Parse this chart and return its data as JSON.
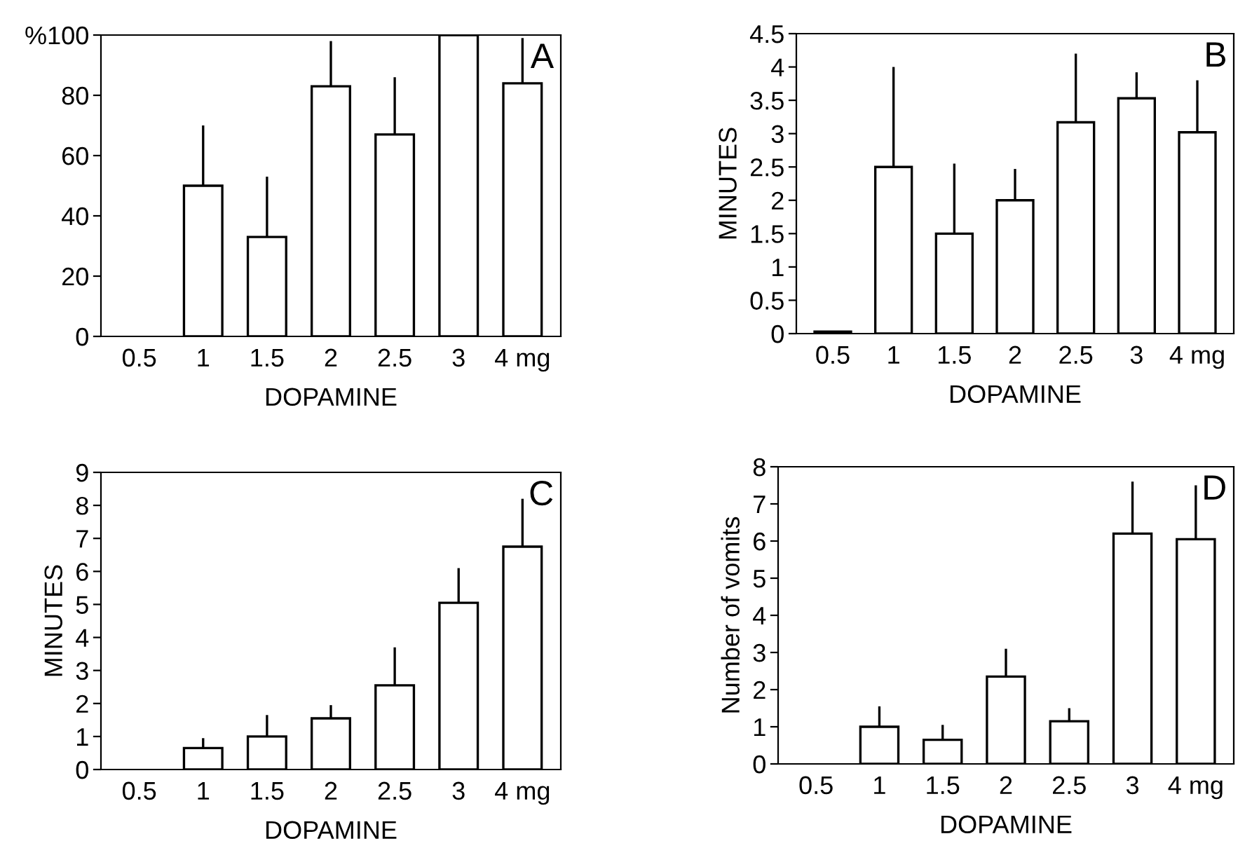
{
  "chart_data": [
    {
      "type": "bar",
      "categories": [
        "0.5",
        "1",
        "1.5",
        "2",
        "2.5",
        "3",
        "4 mg"
      ],
      "xlabel": "DOPAMINE",
      "annotations": [
        "A"
      ],
      "color": "#ffffff",
      "values": [
        0,
        50,
        33,
        83,
        67,
        100,
        84
      ],
      "errors": [
        null,
        [
          50,
          70
        ],
        [
          33,
          53
        ],
        [
          83,
          98
        ],
        [
          67,
          86
        ],
        null,
        [
          84,
          99
        ]
      ],
      "ylim": [
        0,
        100
      ],
      "yticks": [
        0,
        20,
        40,
        60,
        80,
        {
          "value": 100,
          "label": "%100"
        }
      ]
    },
    {
      "type": "bar",
      "categories": [
        "0.5",
        "1",
        "1.5",
        "2",
        "2.5",
        "3",
        "4 mg"
      ],
      "xlabel": "DOPAMINE",
      "ylabel": "MINUTES",
      "annotations": [
        "B"
      ],
      "color": "#ffffff",
      "values": [
        0.03,
        2.5,
        1.5,
        2.0,
        3.17,
        3.53,
        3.02
      ],
      "errors": [
        null,
        [
          2.5,
          4.0
        ],
        [
          1.5,
          2.55
        ],
        [
          2.0,
          2.47
        ],
        [
          3.17,
          4.2
        ],
        [
          3.53,
          3.92
        ],
        [
          3.02,
          3.8
        ]
      ],
      "ylim": [
        0,
        4.5
      ],
      "yticks": [
        0,
        0.5,
        1,
        1.5,
        2,
        2.5,
        3,
        3.5,
        4,
        4.5
      ]
    },
    {
      "type": "bar",
      "categories": [
        "0.5",
        "1",
        "1.5",
        "2",
        "2.5",
        "3",
        "4 mg"
      ],
      "xlabel": "DOPAMINE",
      "ylabel": "MINUTES",
      "annotations": [
        "C"
      ],
      "color": "#ffffff",
      "values": [
        0,
        0.65,
        1.0,
        1.55,
        2.55,
        5.05,
        6.75
      ],
      "errors": [
        null,
        [
          0.65,
          0.95
        ],
        [
          1.0,
          1.65
        ],
        [
          1.55,
          1.95
        ],
        [
          2.55,
          3.7
        ],
        [
          5.05,
          6.1
        ],
        [
          6.75,
          8.2
        ]
      ],
      "ylim": [
        0,
        9
      ],
      "yticks": [
        0,
        1,
        2,
        3,
        4,
        5,
        6,
        7,
        8,
        9
      ]
    },
    {
      "type": "bar",
      "categories": [
        "0.5",
        "1",
        "1.5",
        "2",
        "2.5",
        "3",
        "4 mg"
      ],
      "xlabel": "DOPAMINE",
      "ylabel": "Number of vomits",
      "annotations": [
        "D"
      ],
      "color": "#ffffff",
      "values": [
        0,
        1.0,
        0.65,
        2.35,
        1.15,
        6.2,
        6.05
      ],
      "errors": [
        null,
        [
          1.0,
          1.55
        ],
        [
          0.65,
          1.05
        ],
        [
          2.35,
          3.1
        ],
        [
          1.15,
          1.5
        ],
        [
          6.2,
          7.6
        ],
        [
          6.05,
          7.5
        ]
      ],
      "ylim": [
        0,
        8
      ],
      "yticks": [
        0,
        1,
        2,
        3,
        4,
        5,
        6,
        7,
        8
      ]
    }
  ]
}
